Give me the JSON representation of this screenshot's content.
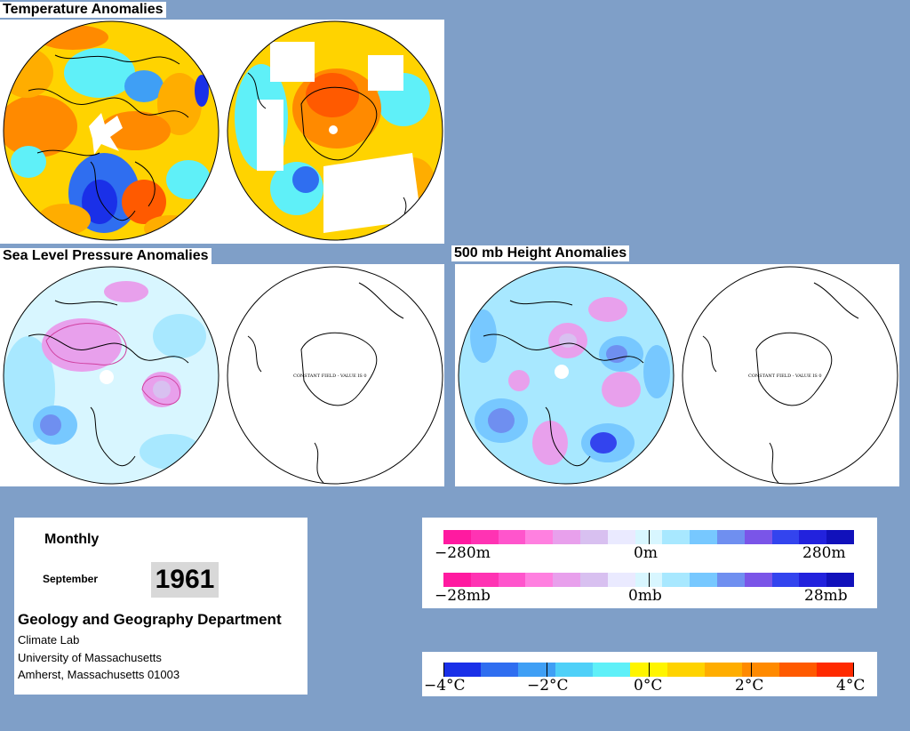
{
  "titles": {
    "temperature": "Temperature Anomalies",
    "slp": "Sea Level Pressure Anomalies",
    "height500": "500 mb Height Anomalies"
  },
  "maps": {
    "constant_field_note": "CONSTANT FIELD - VALUE IS 0"
  },
  "info": {
    "frequency": "Monthly",
    "month": "September",
    "year": "1961",
    "department": "Geology and Geography Department",
    "lab": "Climate Lab",
    "university": "University of Massachusetts",
    "address": "Amherst, Massachusetts 01003"
  },
  "legends": {
    "height": {
      "left": "−280m",
      "center": "0m",
      "right": "280m"
    },
    "pressure": {
      "left": "−28mb",
      "center": "0mb",
      "right": "28mb"
    },
    "temperature": [
      "−4°C",
      "−2°C",
      "0°C",
      "2°C",
      "4°C"
    ]
  },
  "colors": {
    "background": "#7f9fc8",
    "anomaly_scale": [
      "#ff1aa0",
      "#ff33b3",
      "#ff55cc",
      "#ff80e0",
      "#e8a0ec",
      "#d8c0f0",
      "#eaeaff",
      "#d8f6ff",
      "#a8e8ff",
      "#77c8ff",
      "#6f8ff0",
      "#7a55e8",
      "#3344ee",
      "#2222dd",
      "#1111bb"
    ],
    "temperature_scale": [
      "#1a30e8",
      "#2f6ef0",
      "#3f9ff5",
      "#4fd0f8",
      "#5ff0f8",
      "#fff500",
      "#ffd300",
      "#ffad00",
      "#ff8a00",
      "#ff5a00",
      "#ff2a00"
    ]
  }
}
